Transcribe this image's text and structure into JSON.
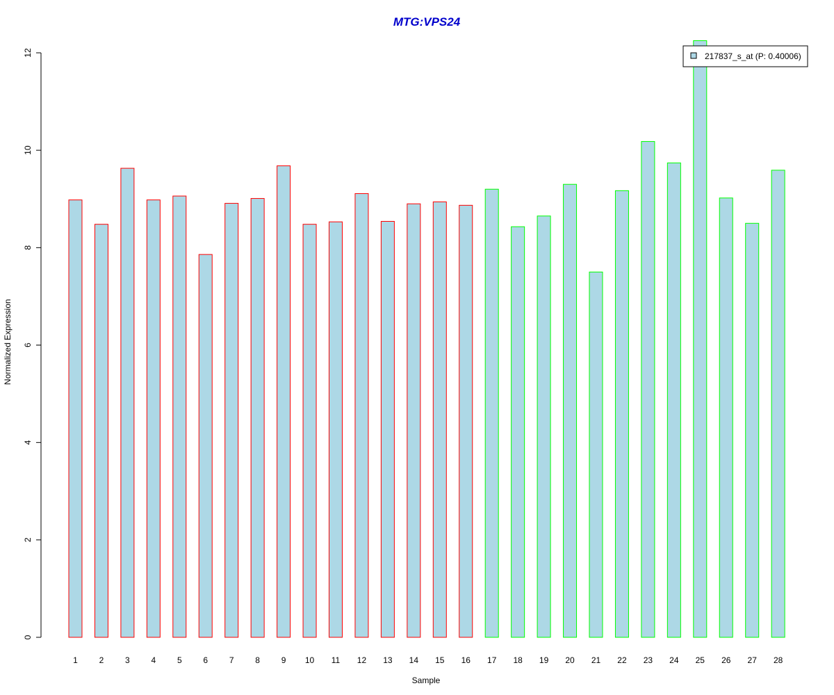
{
  "chart_data": {
    "type": "bar",
    "title": "MTG:VPS24",
    "xlabel": "Sample",
    "ylabel": "Normalized Expression",
    "ylim": [
      0,
      12
    ],
    "yticks": [
      "0",
      "2",
      "4",
      "6",
      "8",
      "10",
      "12"
    ],
    "categories": [
      "1",
      "2",
      "3",
      "4",
      "5",
      "6",
      "7",
      "8",
      "9",
      "10",
      "11",
      "12",
      "13",
      "14",
      "15",
      "16",
      "17",
      "18",
      "19",
      "20",
      "21",
      "22",
      "23",
      "24",
      "25",
      "26",
      "27",
      "28"
    ],
    "series": [
      {
        "name": "217837_s_at (P: 0.40006)",
        "values": [
          8.98,
          8.48,
          9.63,
          8.98,
          9.06,
          7.86,
          8.91,
          9.01,
          9.68,
          8.48,
          8.53,
          9.11,
          8.54,
          8.9,
          8.94,
          8.87,
          9.2,
          8.43,
          8.65,
          9.3,
          7.5,
          9.17,
          10.18,
          9.74,
          12.25,
          9.02,
          8.5,
          9.59
        ]
      }
    ],
    "bar_fill": "#add8e6",
    "group_border_colors": [
      "#ff0000",
      "#00ff00"
    ],
    "group_sizes": [
      16,
      12
    ],
    "title_color": "#0000cc",
    "legend_position": "top-right",
    "grid": false
  }
}
